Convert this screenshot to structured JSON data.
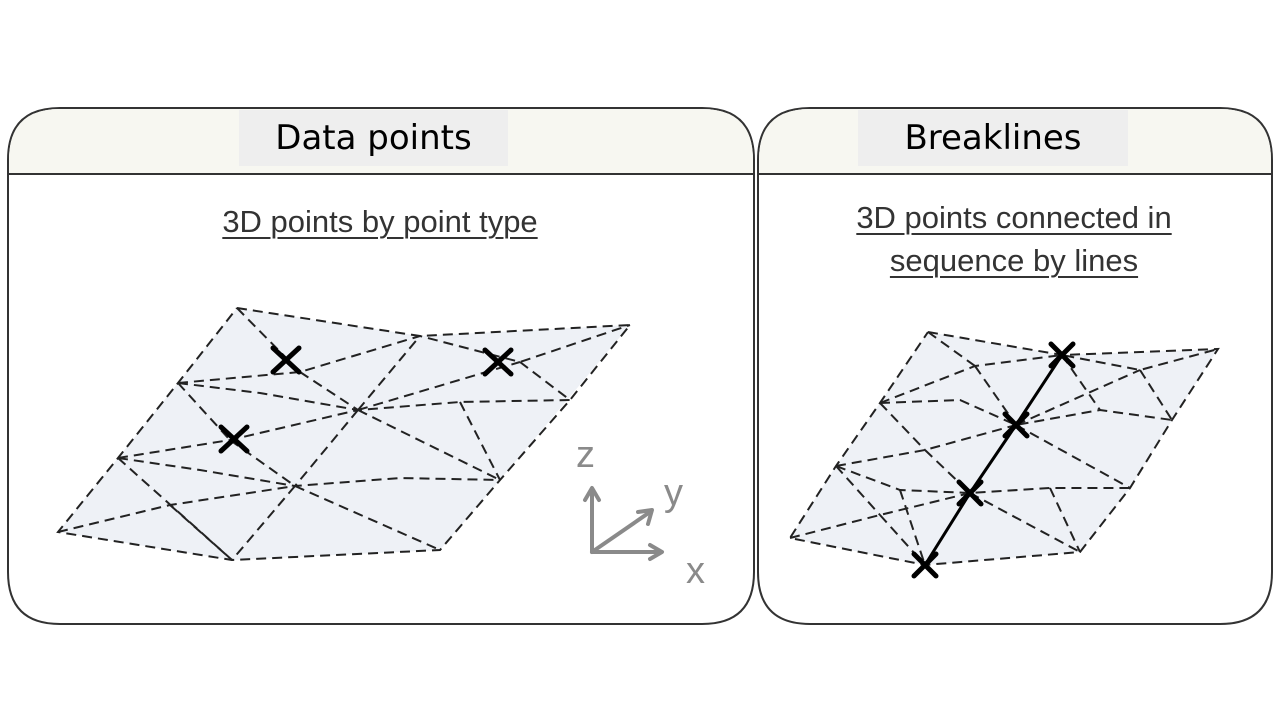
{
  "panels": {
    "data_points": {
      "title": "Data points",
      "caption": "3D points by point type"
    },
    "breaklines": {
      "title": "Breaklines",
      "caption_line1": "3D points connected in",
      "caption_line2": "sequence by lines"
    }
  },
  "axes": {
    "z": "z",
    "y": "y",
    "x": "x"
  },
  "colors": {
    "panel_border": "#333333",
    "header_fill": "#f7f7f1",
    "title_bg": "#eeeeee",
    "mesh_fill": "#eef1f6",
    "axis_gray": "#8a8a8a"
  }
}
